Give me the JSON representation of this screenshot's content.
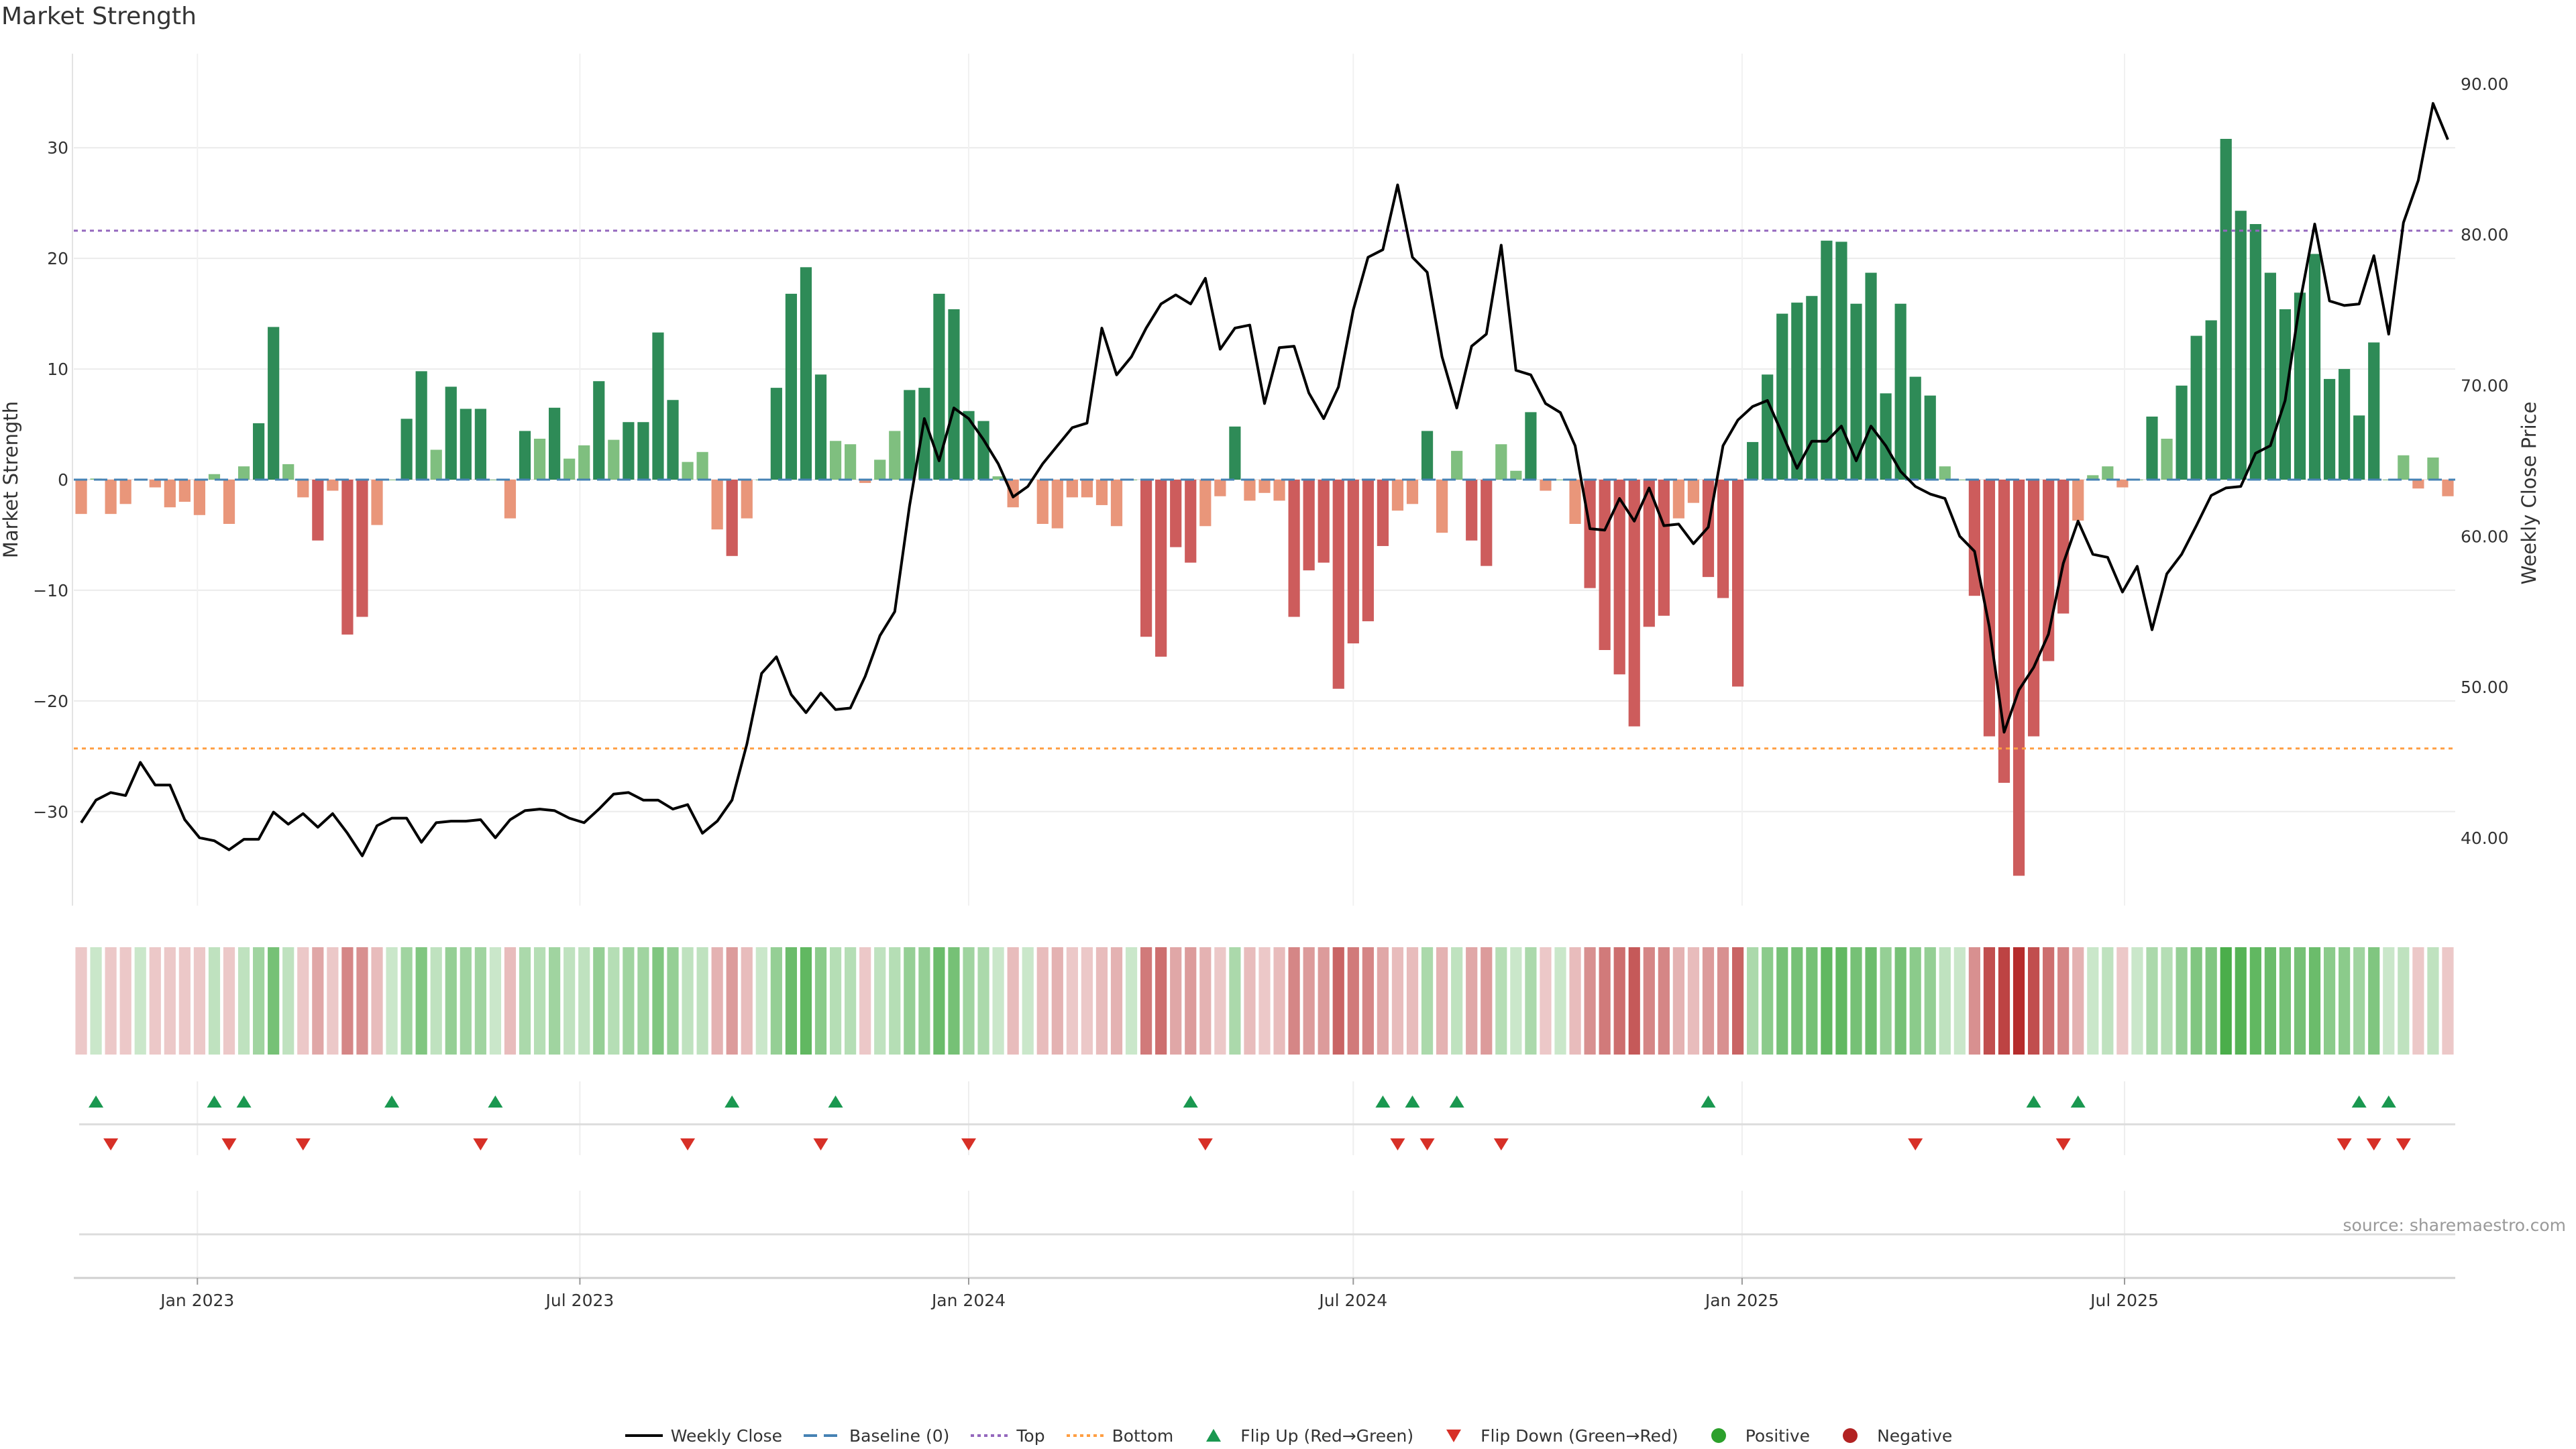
{
  "title": "Market Strength",
  "source": "source: sharemaestro.com",
  "legend": [
    {
      "label": "Weekly Close",
      "key": "weekly-close"
    },
    {
      "label": "Baseline (0)",
      "key": "baseline"
    },
    {
      "label": "Top",
      "key": "top"
    },
    {
      "label": "Bottom",
      "key": "bottom"
    },
    {
      "label": "Flip Up (Red→Green)",
      "key": "flip-up"
    },
    {
      "label": "Flip Down (Green→Red)",
      "key": "flip-down"
    },
    {
      "label": "Positive",
      "key": "positive"
    },
    {
      "label": "Negative",
      "key": "negative"
    }
  ],
  "colors": {
    "green_strong": "#2e8b57",
    "green_light": "#7fbf7f",
    "red_strong": "#cd5c5c",
    "red_light": "#e9967a",
    "close_line": "#000000",
    "baseline": "#4682b4",
    "top": "#9467bd",
    "bottom": "#ff9f43",
    "flip_up": "#1a9850",
    "flip_down": "#d73027",
    "positive": "#2ca02c",
    "negative": "#b22222"
  },
  "chart_data": {
    "type": "bar",
    "x_start": "2022-11-07",
    "x_interval": "weekly",
    "ylabel": "Market Strength",
    "y2label": "Weekly Close Price",
    "ylim": [
      -38.5,
      38.5
    ],
    "y2lim": [
      35.5,
      92
    ],
    "yticks": [
      30,
      20,
      10,
      0,
      -10,
      -20,
      -30
    ],
    "y2ticks": [
      "90.00",
      "80.00",
      "70.00",
      "60.00",
      "50.00",
      "40.00"
    ],
    "xticks": [
      "Jan 2023",
      "Jul 2023",
      "Jan 2024",
      "Jul 2024",
      "Jan 2025",
      "Jul 2025"
    ],
    "top": 22.5,
    "bottom": -24.3,
    "strength": [
      -3.1,
      0.1,
      -3.1,
      -2.2,
      0,
      -0.7,
      -2.5,
      -2.0,
      -3.2,
      0.5,
      -4.0,
      1.2,
      5.1,
      13.8,
      1.4,
      -1.6,
      -5.5,
      -1.0,
      -14.0,
      -12.4,
      -4.1,
      0,
      5.5,
      9.8,
      2.7,
      8.4,
      6.4,
      6.4,
      0,
      -3.5,
      4.4,
      3.7,
      6.5,
      1.9,
      3.1,
      8.9,
      3.6,
      5.2,
      5.2,
      13.3,
      7.2,
      1.6,
      2.5,
      -4.5,
      -6.9,
      -3.5,
      0,
      8.3,
      16.8,
      19.2,
      9.5,
      3.5,
      3.2,
      -0.3,
      1.8,
      4.4,
      8.1,
      8.3,
      16.8,
      15.4,
      6.2,
      5.3,
      0.3,
      -2.5,
      0,
      -4.0,
      -4.4,
      -1.6,
      -1.6,
      -2.3,
      -4.2,
      0,
      -14.2,
      -16.0,
      -6.1,
      -7.5,
      -4.2,
      -1.5,
      4.8,
      -1.9,
      -1.2,
      -1.9,
      -12.4,
      -8.2,
      -7.5,
      -18.9,
      -14.8,
      -12.8,
      -6.0,
      -2.8,
      -2.2,
      4.4,
      -4.8,
      2.6,
      -5.5,
      -7.8,
      3.2,
      0.8,
      6.1,
      -1.0,
      0,
      -4.0,
      -9.8,
      -15.4,
      -17.6,
      -22.3,
      -13.3,
      -12.3,
      -3.5,
      -2.1,
      -8.8,
      -10.7,
      -18.7,
      3.4,
      9.5,
      15.0,
      16.0,
      16.6,
      21.6,
      21.5,
      15.9,
      18.7,
      7.8,
      15.9,
      9.3,
      7.6,
      1.2,
      0,
      -10.5,
      -23.2,
      -27.4,
      -35.8,
      -23.2,
      -16.4,
      -12.1,
      -3.7,
      0.4,
      1.2,
      -0.7,
      0,
      5.7,
      3.7,
      8.5,
      13.0,
      14.4,
      30.8,
      24.3,
      23.1,
      18.7,
      15.4,
      16.9,
      20.4,
      9.1,
      10.0,
      5.8,
      12.4,
      0,
      2.2,
      -0.8,
      2.0,
      -1.5
    ],
    "close": [
      41.0,
      42.5,
      43.0,
      42.8,
      45.0,
      43.5,
      43.5,
      41.2,
      40.0,
      39.8,
      39.2,
      39.9,
      39.9,
      41.7,
      40.9,
      41.6,
      40.7,
      41.6,
      40.3,
      38.8,
      40.8,
      41.3,
      41.3,
      39.7,
      41.0,
      41.1,
      41.1,
      41.2,
      40.0,
      41.2,
      41.8,
      41.9,
      41.8,
      41.3,
      41.0,
      41.9,
      42.9,
      43.0,
      42.5,
      42.5,
      41.9,
      42.2,
      40.3,
      41.1,
      42.5,
      46.2,
      50.9,
      52.0,
      49.5,
      48.3,
      49.6,
      48.5,
      48.6,
      50.7,
      53.4,
      55.0,
      62.0,
      67.8,
      65.0,
      68.5,
      67.8,
      66.4,
      64.8,
      62.6,
      63.3,
      64.8,
      66.0,
      67.2,
      67.5,
      73.8,
      70.7,
      71.9,
      73.8,
      75.4,
      76.0,
      75.4,
      77.1,
      72.4,
      73.8,
      74.0,
      68.8,
      72.5,
      72.6,
      69.5,
      67.8,
      69.9,
      75.0,
      78.5,
      79.0,
      83.3,
      78.5,
      77.5,
      71.9,
      68.5,
      72.6,
      73.4,
      79.3,
      71.0,
      70.7,
      68.8,
      68.2,
      66.0,
      60.5,
      60.4,
      62.5,
      61.0,
      63.2,
      60.7,
      60.8,
      59.5,
      60.6,
      66.0,
      67.7,
      68.6,
      69.0,
      66.8,
      64.5,
      66.3,
      66.3,
      67.3,
      65.0,
      67.3,
      66.0,
      64.3,
      63.3,
      62.8,
      62.5,
      60.0,
      59.0,
      54.0,
      47.0,
      49.8,
      51.3,
      53.5,
      58.2,
      61.0,
      58.8,
      58.6,
      56.3,
      58.0,
      53.8,
      57.5,
      58.8,
      60.7,
      62.7,
      63.2,
      63.3,
      65.5,
      66.0,
      69.0,
      75.5,
      80.7,
      75.6,
      75.3,
      75.4,
      78.6,
      73.4,
      80.8,
      83.6,
      88.7,
      86.3
    ],
    "heat_alpha": [
      0.25,
      0.25,
      0.25,
      0.25,
      0.25,
      0.25,
      0.25,
      0.25,
      0.25,
      0.3,
      0.25,
      0.3,
      0.45,
      0.65,
      0.3,
      0.25,
      0.4,
      0.25,
      0.55,
      0.5,
      0.3,
      0.25,
      0.45,
      0.6,
      0.3,
      0.5,
      0.45,
      0.45,
      0.25,
      0.3,
      0.4,
      0.35,
      0.45,
      0.3,
      0.3,
      0.5,
      0.35,
      0.45,
      0.45,
      0.6,
      0.5,
      0.3,
      0.3,
      0.35,
      0.45,
      0.3,
      0.25,
      0.5,
      0.7,
      0.75,
      0.55,
      0.35,
      0.35,
      0.25,
      0.3,
      0.35,
      0.5,
      0.5,
      0.7,
      0.65,
      0.45,
      0.4,
      0.25,
      0.3,
      0.25,
      0.3,
      0.35,
      0.25,
      0.25,
      0.3,
      0.35,
      0.25,
      0.6,
      0.65,
      0.4,
      0.45,
      0.35,
      0.25,
      0.4,
      0.3,
      0.25,
      0.3,
      0.55,
      0.45,
      0.45,
      0.7,
      0.6,
      0.55,
      0.4,
      0.3,
      0.3,
      0.4,
      0.35,
      0.3,
      0.4,
      0.45,
      0.35,
      0.25,
      0.4,
      0.25,
      0.25,
      0.3,
      0.5,
      0.6,
      0.65,
      0.75,
      0.55,
      0.55,
      0.35,
      0.3,
      0.45,
      0.5,
      0.7,
      0.4,
      0.55,
      0.65,
      0.65,
      0.65,
      0.75,
      0.75,
      0.65,
      0.7,
      0.5,
      0.65,
      0.55,
      0.5,
      0.3,
      0.25,
      0.5,
      0.8,
      0.85,
      0.95,
      0.8,
      0.65,
      0.55,
      0.35,
      0.25,
      0.3,
      0.25,
      0.25,
      0.4,
      0.35,
      0.5,
      0.6,
      0.6,
      0.85,
      0.8,
      0.75,
      0.7,
      0.65,
      0.65,
      0.7,
      0.55,
      0.55,
      0.45,
      0.6,
      0.25,
      0.3,
      0.25,
      0.3,
      0.25
    ],
    "flip_up_weeks": [
      1,
      9,
      11,
      21,
      28,
      44,
      51,
      75,
      88,
      90,
      93,
      110,
      132,
      135,
      154,
      156
    ],
    "flip_down_weeks": [
      2,
      10,
      15,
      27,
      41,
      50,
      60,
      76,
      89,
      91,
      96,
      124,
      134,
      153,
      155,
      157
    ]
  }
}
